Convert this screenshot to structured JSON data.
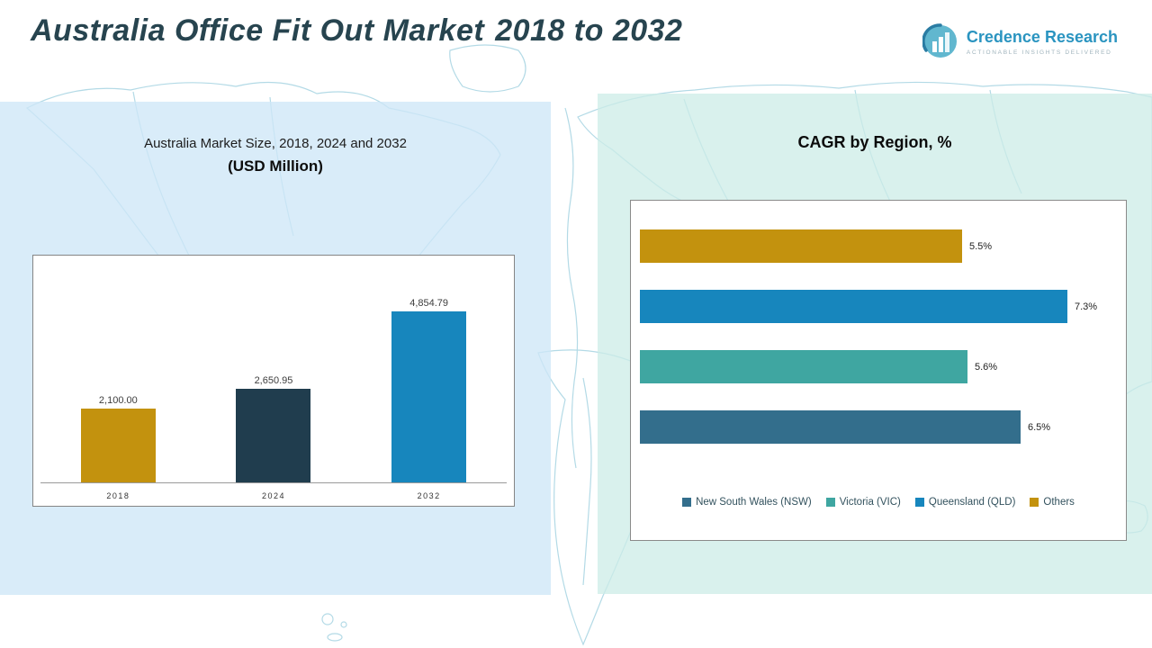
{
  "header": {
    "title": "Australia Office Fit Out Market",
    "title_range": "2018 to 2032",
    "logo": {
      "name": "Credence Research",
      "tagline": "ACTIONABLE INSIGHTS DELIVERED"
    }
  },
  "left_panel": {
    "subtitle": "Australia Market Size, 2018, 2024 and 2032",
    "unit_label": "(USD Million)"
  },
  "right_panel": {
    "title": "CAGR by Region, %"
  },
  "chart_data": [
    {
      "type": "bar",
      "orientation": "vertical",
      "title": "Australia Market Size, 2018, 2024 and 2032 (USD Million)",
      "categories": [
        "2018",
        "2024",
        "2032"
      ],
      "values": [
        2100.0,
        2650.95,
        4854.79
      ],
      "value_labels": [
        "2,100.00",
        "2,650.95",
        "4,854.79"
      ],
      "colors": [
        "#C3920E",
        "#203D4E",
        "#1786BD"
      ],
      "xlabel": "",
      "ylabel": "USD Million",
      "ylim": [
        0,
        5000
      ],
      "grid": false,
      "legend_position": "none"
    },
    {
      "type": "bar",
      "orientation": "horizontal",
      "title": "CAGR by Region, %",
      "categories": [
        "Others",
        "Queensland (QLD)",
        "Victoria (VIC)",
        "New South Wales (NSW)"
      ],
      "values": [
        5.5,
        7.3,
        5.6,
        6.5
      ],
      "value_labels": [
        "5.5%",
        "7.3%",
        "5.6%",
        "6.5%"
      ],
      "colors": [
        "#C3920E",
        "#1786BD",
        "#3FA6A1",
        "#336E8C"
      ],
      "xlabel": "CAGR %",
      "ylabel": "",
      "xlim": [
        0,
        8
      ],
      "grid": false,
      "legend_position": "bottom",
      "legend": [
        {
          "label": "New South Wales (NSW)",
          "color": "#336E8C"
        },
        {
          "label": "Victoria (VIC)",
          "color": "#3FA6A1"
        },
        {
          "label": "Queensland (QLD)",
          "color": "#1786BD"
        },
        {
          "label": "Others",
          "color": "#C3920E"
        }
      ]
    }
  ]
}
